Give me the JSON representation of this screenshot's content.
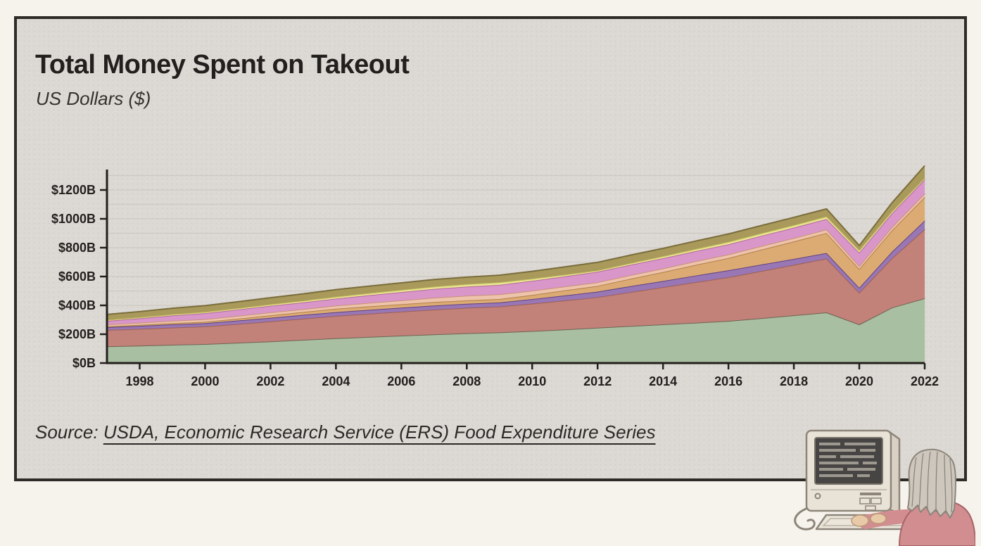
{
  "header": {
    "title": "Total Money Spent on Takeout",
    "subtitle": "US Dollars ($)"
  },
  "source": {
    "prefix": "Source: ",
    "link_text": "USDA, Economic Research Service (ERS) Food Expenditure Series"
  },
  "illustration": {
    "description": "older person with long gray hair and glasses typing on a keyboard in front of a retro beige computer with a dark text screen and mouse cable"
  },
  "colors": {
    "page_background": "#f6f2ec",
    "canvas_background": "#dcd8d3",
    "frame_border": "#2d2a27",
    "axis": "#22201d",
    "gridline": "#ccc8c2",
    "text": "#22201e"
  },
  "chart_data": {
    "type": "area",
    "stacked": true,
    "title": "Total Money Spent on Takeout",
    "ylabel": "US Dollars ($)",
    "xlabel": "",
    "legend": "none shown in image; series unlabeled, identified by color bottom-to-top",
    "grid": "horizontal minor gridlines every 100B",
    "ylim": [
      0,
      1341
    ],
    "x_range": [
      1997,
      2022
    ],
    "years": [
      1997,
      1998,
      1999,
      2000,
      2001,
      2002,
      2003,
      2004,
      2005,
      2006,
      2007,
      2008,
      2009,
      2010,
      2011,
      2012,
      2013,
      2014,
      2015,
      2016,
      2017,
      2018,
      2019,
      2020,
      2021,
      2022
    ],
    "units": "billions of US dollars, values estimated from pixels",
    "series": [
      {
        "name": "band-1-green-bottom",
        "color": "#a9bfa1",
        "stroke": "#6f6453",
        "values": [
          116,
          121,
          127,
          132,
          141,
          150,
          161,
          172,
          181,
          190,
          199,
          207,
          213,
          222,
          233,
          245,
          257,
          268,
          280,
          292,
          311,
          331,
          351,
          268,
          385,
          449
        ]
      },
      {
        "name": "band-2-terracotta",
        "color": "#c28179",
        "stroke": "#9b6058",
        "values": [
          113,
          116,
          119,
          122,
          130,
          139,
          147,
          155,
          161,
          167,
          172,
          176,
          179,
          190,
          201,
          212,
          235,
          258,
          281,
          303,
          327,
          350,
          374,
          221,
          342,
          479
        ]
      },
      {
        "name": "band-3-purple",
        "color": "#9977b5",
        "stroke": "#5f4181",
        "values": [
          20,
          21,
          22,
          22,
          24,
          25,
          26,
          26,
          27,
          27,
          28,
          28,
          28,
          31,
          35,
          38,
          41,
          43,
          46,
          48,
          45,
          41,
          38,
          33,
          45,
          60
        ]
      },
      {
        "name": "band-4-orange-tan",
        "color": "#dcab74",
        "stroke": "#b08048",
        "values": [
          6,
          7,
          9,
          10,
          13,
          17,
          20,
          24,
          24,
          24,
          24,
          24,
          24,
          29,
          35,
          40,
          51,
          62,
          74,
          85,
          103,
          121,
          139,
          130,
          148,
          163
        ]
      },
      {
        "name": "band-5-salmon",
        "color": "#eec3ac",
        "stroke": "#c89179",
        "values": [
          12,
          14,
          16,
          18,
          19,
          20,
          20,
          21,
          24,
          27,
          30,
          32,
          33,
          30,
          27,
          25,
          25,
          25,
          25,
          25,
          25,
          24,
          24,
          20,
          22,
          24
        ]
      },
      {
        "name": "band-6-orchid-pink",
        "color": "#d996c9",
        "stroke": "#b466a2",
        "values": [
          25,
          31,
          37,
          42,
          44,
          46,
          47,
          49,
          53,
          57,
          61,
          63,
          65,
          68,
          70,
          73,
          72,
          71,
          70,
          70,
          71,
          72,
          73,
          94,
          96,
          98
        ]
      },
      {
        "name": "band-7-pale-yellow",
        "color": "#e9e68f",
        "stroke": "#c2bd62",
        "values": [
          7,
          7,
          8,
          8,
          9,
          10,
          11,
          13,
          14,
          15,
          16,
          17,
          18,
          15,
          12,
          9,
          11,
          13,
          15,
          17,
          17,
          17,
          17,
          16,
          13,
          10
        ]
      },
      {
        "name": "band-8-olive-top",
        "color": "#a99a5b",
        "stroke": "#7a6d3c",
        "values": [
          38,
          40,
          42,
          44,
          45,
          46,
          48,
          49,
          49,
          49,
          49,
          49,
          49,
          51,
          54,
          56,
          56,
          55,
          55,
          55,
          54,
          54,
          53,
          33,
          60,
          85
        ]
      }
    ],
    "y_ticks": {
      "values": [
        0,
        200,
        400,
        600,
        800,
        1000,
        1200
      ],
      "labels": [
        "$0B",
        "$200B",
        "$400B",
        "$600B",
        "$800B",
        "$1000B",
        "$1200B"
      ]
    },
    "minor_grid": {
      "step": 100,
      "max": 1300
    },
    "x_ticks": {
      "values": [
        1998,
        2000,
        2002,
        2004,
        2006,
        2008,
        2010,
        2012,
        2014,
        2016,
        2018,
        2020,
        2022
      ],
      "labels": [
        "1998",
        "2000",
        "2002",
        "2004",
        "2006",
        "2008",
        "2010",
        "2012",
        "2014",
        "2016",
        "2018",
        "2020",
        "2022"
      ]
    }
  }
}
